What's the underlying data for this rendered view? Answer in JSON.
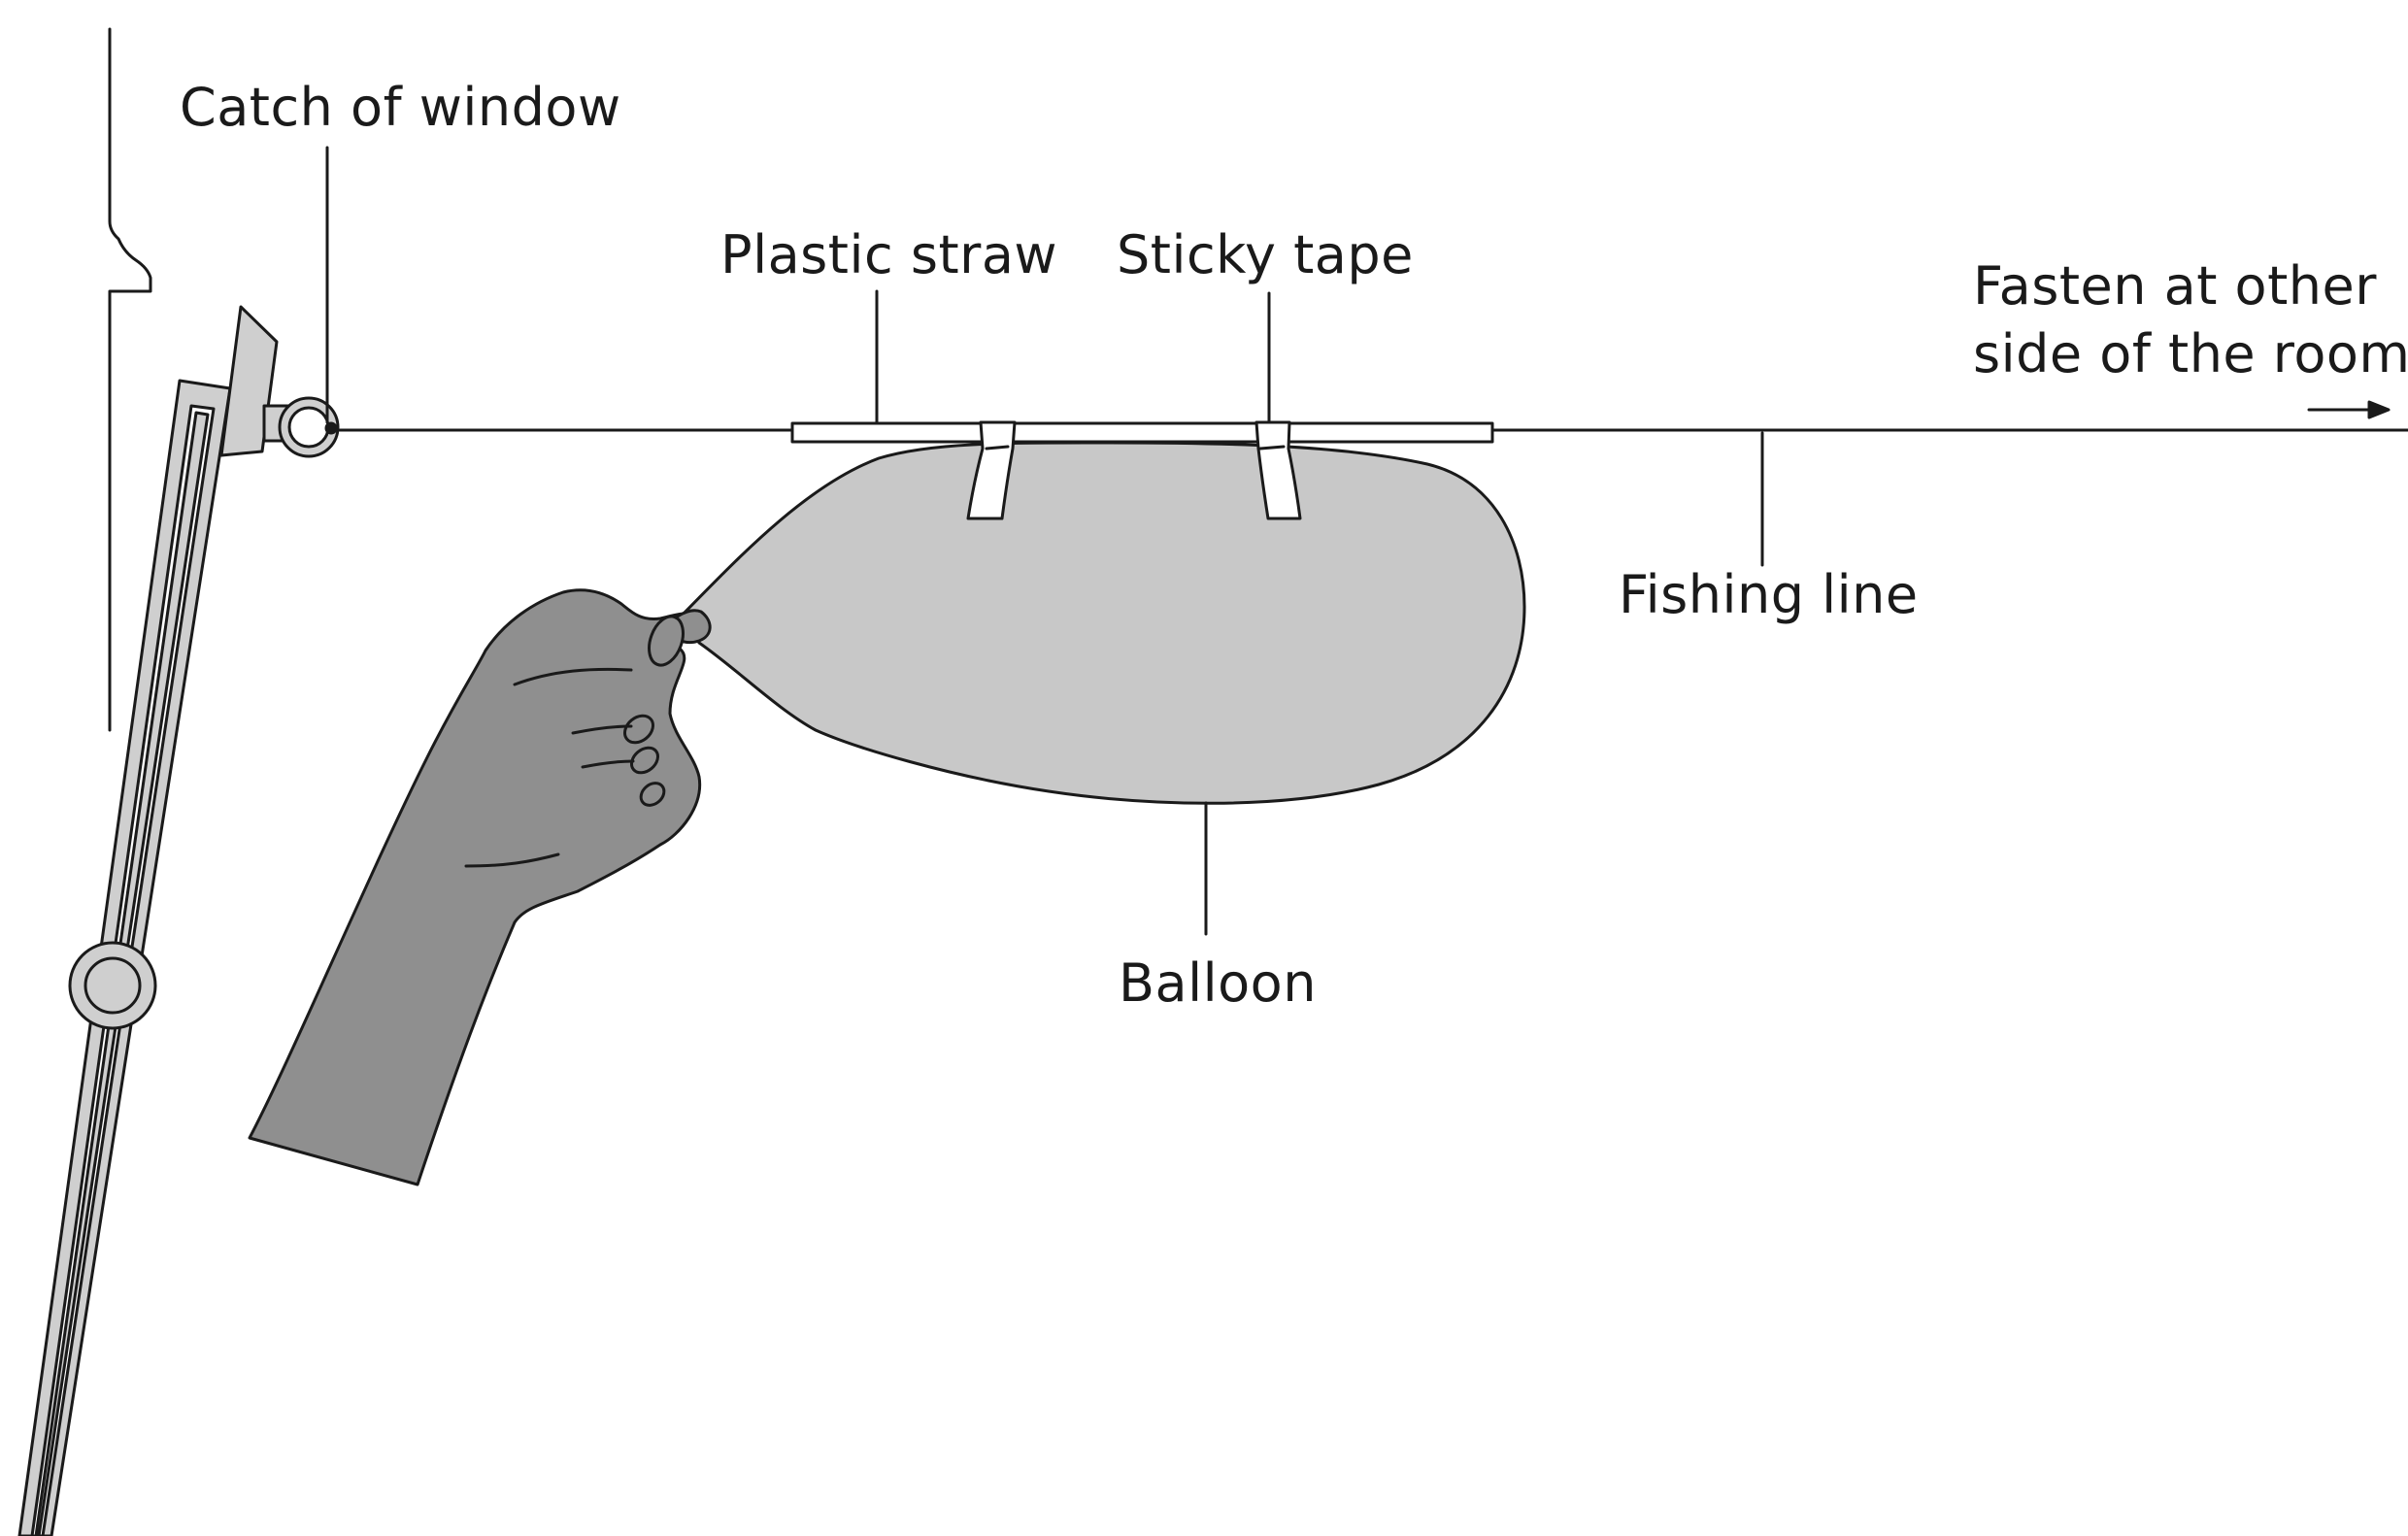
{
  "labels": {
    "catch": "Catch of window",
    "straw": "Plastic straw",
    "tape": "Sticky tape",
    "fasten_line1": "Fasten at other",
    "fasten_line2": "side of the room",
    "fishing": "Fishing line",
    "balloon": "Balloon"
  },
  "colors": {
    "stroke": "#1a1a1a",
    "balloon_fill": "#c8c8c8",
    "hand_fill": "#8f8f8f",
    "window_fill": "#cfcfcf",
    "tape_fill": "#ffffff"
  }
}
